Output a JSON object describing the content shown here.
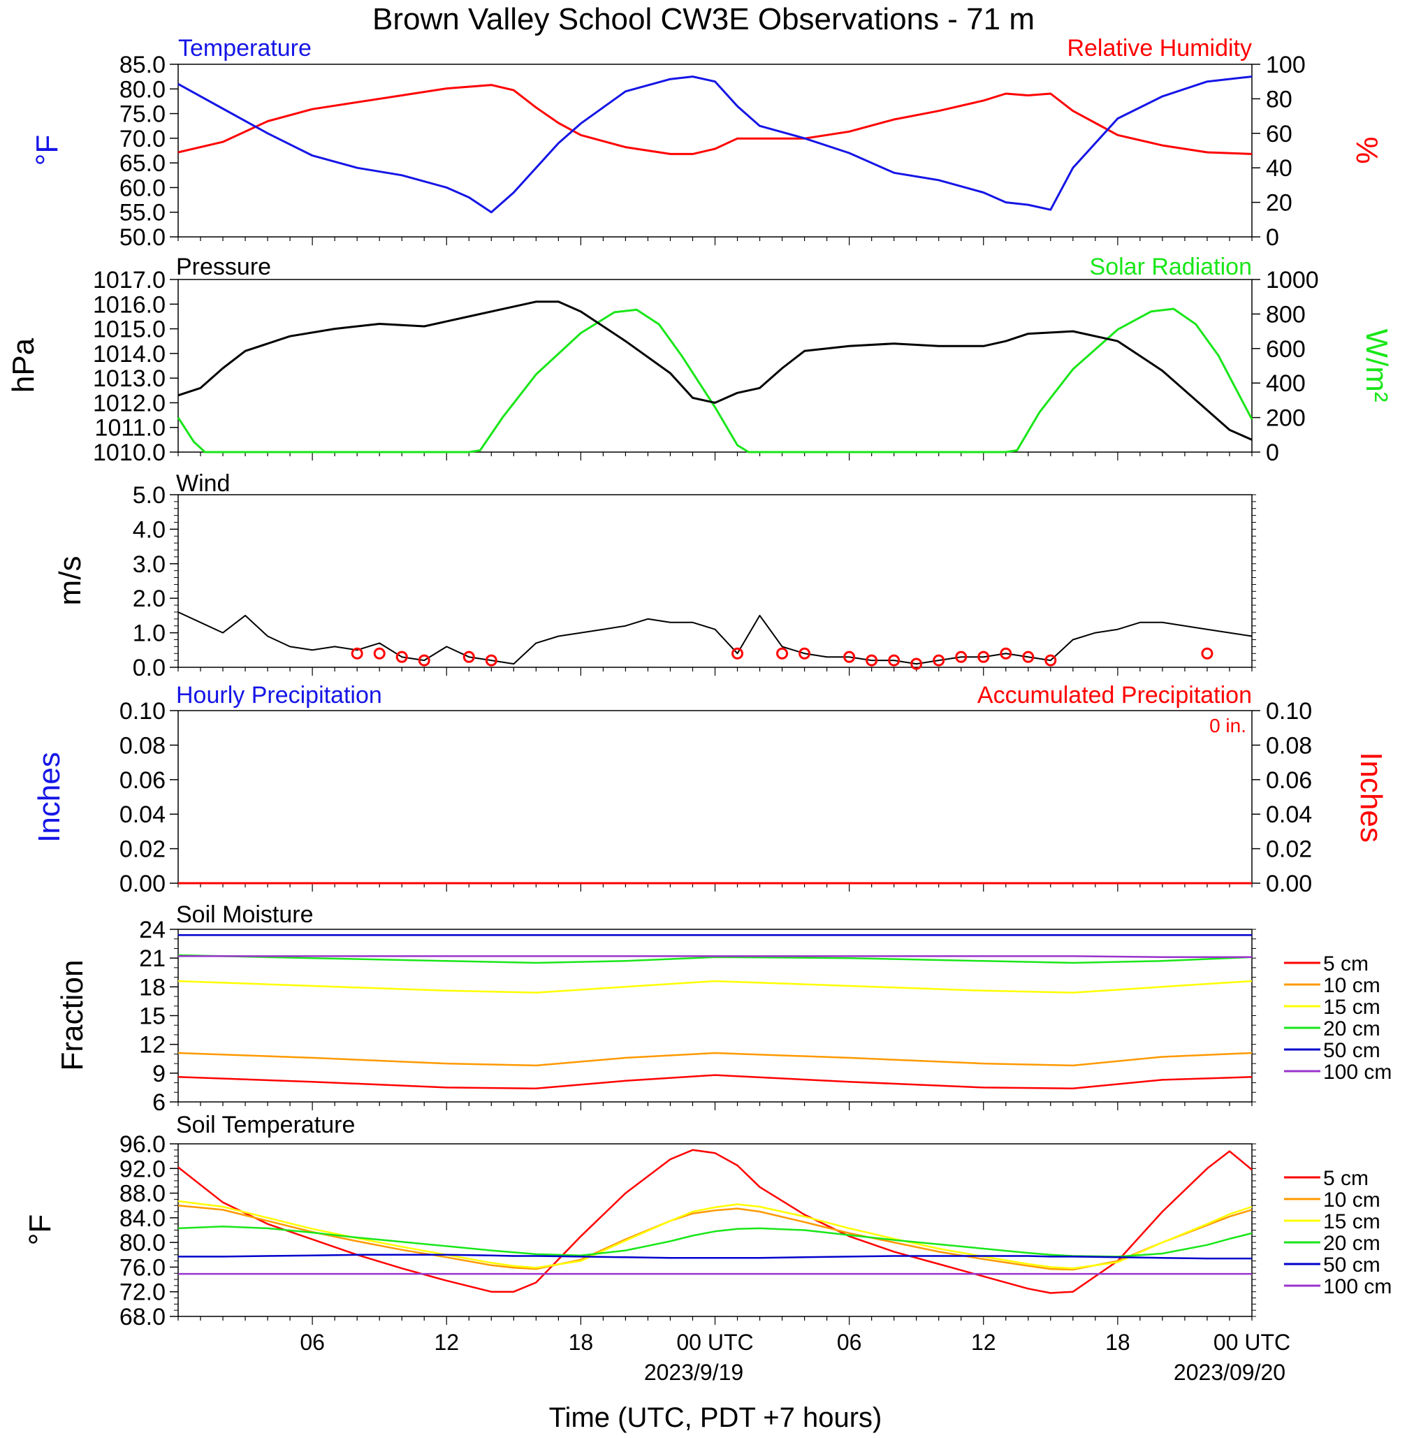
{
  "title": "Brown Valley School CW3E Observations - 71 m",
  "xlabel": "Time (UTC, PDT +7 hours)",
  "time_ticks": [
    "06",
    "12",
    "18",
    "00 UTC",
    "06",
    "12",
    "18",
    "00 UTC"
  ],
  "date_labels": [
    "2023/9/19",
    "2023/09/20"
  ],
  "colors": {
    "blue": "#1515e6",
    "red": "#ff0000",
    "green": "#19e619",
    "black": "#000000",
    "orange": "#ff9900",
    "yellow": "#ffff00",
    "navy": "#0000cc",
    "purple": "#9933cc"
  },
  "chart_data": [
    {
      "type": "line",
      "name_left": "Temperature",
      "name_right": "Relative Humidity",
      "ylabel_left": "°F",
      "ylabel_right": "%",
      "ylim_left": [
        50,
        85
      ],
      "ylim_right": [
        0,
        100
      ],
      "yticks_left": [
        "85.0",
        "80.0",
        "75.0",
        "70.0",
        "65.0",
        "60.0",
        "55.0",
        "50.0"
      ],
      "yticks_right": [
        "100",
        "80",
        "60",
        "40",
        "20",
        "0"
      ],
      "x_hours": [
        0,
        2,
        4,
        6,
        8,
        10,
        12,
        13,
        14,
        15,
        16,
        17,
        18,
        20,
        22,
        23,
        24,
        25,
        26,
        28,
        30,
        32,
        34,
        36,
        37,
        38,
        39,
        40,
        41,
        42,
        44,
        46,
        48
      ],
      "temperature_f": [
        81,
        76,
        71,
        66.5,
        64,
        62.5,
        60,
        58,
        55,
        59,
        64,
        69,
        73,
        79.5,
        82,
        82.5,
        81.5,
        76.5,
        72.5,
        70,
        67,
        63,
        61.5,
        59,
        57,
        56.5,
        55.5,
        64,
        69,
        74,
        78.5,
        81.5,
        82.5
      ],
      "rh_percent": [
        49,
        55,
        67,
        74,
        78,
        82,
        86,
        87,
        88,
        85,
        75,
        66,
        59,
        52,
        48,
        48,
        51,
        57,
        57,
        57,
        61,
        68,
        73,
        79,
        83,
        82,
        83,
        73,
        66,
        59,
        53,
        49,
        48
      ]
    },
    {
      "type": "line",
      "name_left": "Pressure",
      "name_right": "Solar Radiation",
      "ylabel_left": "hPa",
      "ylabel_right": "W/m²",
      "ylim_left": [
        1010,
        1017
      ],
      "ylim_right": [
        0,
        1000
      ],
      "yticks_left": [
        "1017.0",
        "1016.0",
        "1015.0",
        "1014.0",
        "1013.0",
        "1012.0",
        "1011.0",
        "1010.0"
      ],
      "yticks_right": [
        "1000",
        "800",
        "600",
        "400",
        "200",
        "0"
      ],
      "pressure_x_hours": [
        0,
        1,
        2,
        3,
        5,
        7,
        9,
        11,
        13,
        15,
        16,
        17,
        18,
        20,
        22,
        23,
        24,
        25,
        26,
        27,
        28,
        30,
        32,
        34,
        36,
        37,
        38,
        40,
        42,
        44,
        46,
        47,
        48
      ],
      "pressure_hpa": [
        1012.3,
        1012.6,
        1013.4,
        1014.1,
        1014.7,
        1015.0,
        1015.2,
        1015.1,
        1015.5,
        1015.9,
        1016.1,
        1016.1,
        1015.7,
        1014.5,
        1013.2,
        1012.2,
        1012.0,
        1012.4,
        1012.6,
        1013.4,
        1014.1,
        1014.3,
        1014.4,
        1014.3,
        1014.3,
        1014.5,
        1014.8,
        1014.9,
        1014.5,
        1013.3,
        1011.7,
        1010.9,
        1010.5
      ],
      "solar_x_hours": [
        0,
        0.7,
        1.2,
        13,
        13.5,
        14.5,
        16,
        18,
        19.5,
        20.5,
        21.5,
        22.5,
        24,
        25,
        25.5,
        37,
        37.5,
        38.5,
        40,
        42,
        43.5,
        44.5,
        45.5,
        46.5,
        48
      ],
      "solar_wm2": [
        200,
        60,
        0,
        0,
        10,
        200,
        450,
        690,
        810,
        825,
        740,
        560,
        260,
        40,
        0,
        0,
        10,
        230,
        480,
        710,
        815,
        830,
        740,
        560,
        190
      ]
    },
    {
      "type": "line",
      "name": "Wind",
      "ylabel": "m/s",
      "ylim": [
        0,
        5
      ],
      "yticks": [
        "5.0",
        "4.0",
        "3.0",
        "2.0",
        "1.0",
        "0.0"
      ],
      "x_hours": [
        0,
        1,
        2,
        3,
        4,
        5,
        6,
        7,
        8,
        9,
        10,
        11,
        12,
        13,
        14,
        15,
        16,
        17,
        18,
        19,
        20,
        21,
        22,
        23,
        24,
        25,
        26,
        27,
        28,
        29,
        30,
        31,
        32,
        33,
        34,
        35,
        36,
        37,
        38,
        39,
        40,
        41,
        42,
        43,
        44,
        45,
        46,
        47,
        48
      ],
      "speed_ms": [
        1.6,
        1.3,
        1.0,
        1.5,
        0.9,
        0.6,
        0.5,
        0.6,
        0.5,
        0.7,
        0.3,
        0.2,
        0.6,
        0.3,
        0.2,
        0.1,
        0.7,
        0.9,
        1.0,
        1.1,
        1.2,
        1.4,
        1.3,
        1.3,
        1.1,
        0.4,
        1.5,
        0.6,
        0.4,
        0.3,
        0.3,
        0.2,
        0.2,
        0.1,
        0.2,
        0.3,
        0.3,
        0.4,
        0.3,
        0.2,
        0.8,
        1.0,
        1.1,
        1.3,
        1.3,
        1.2,
        1.1,
        1.0,
        0.9
      ],
      "calm_marker_hours": [
        8,
        9,
        10,
        11,
        13,
        14,
        25,
        27,
        28,
        30,
        31,
        32,
        33,
        34,
        35,
        36,
        37,
        38,
        39,
        46
      ]
    },
    {
      "type": "line",
      "name_left": "Hourly Precipitation",
      "name_right": "Accumulated Precipitation",
      "annotation": "0 in.",
      "ylabel_left": "Inches",
      "ylabel_right": "Inches",
      "ylim": [
        0,
        0.1
      ],
      "yticks": [
        "0.10",
        "0.08",
        "0.06",
        "0.04",
        "0.02",
        "0.00"
      ],
      "x_hours": [
        0,
        48
      ],
      "hourly_in": [
        0,
        0
      ],
      "accum_in": [
        0,
        0
      ]
    },
    {
      "type": "line",
      "name": "Soil Moisture",
      "ylabel": "Fraction",
      "ylim": [
        6,
        24
      ],
      "yticks": [
        "24",
        "21",
        "18",
        "15",
        "12",
        "9",
        "6"
      ],
      "legend": [
        "5 cm",
        "10 cm",
        "15 cm",
        "20 cm",
        "50 cm",
        "100 cm"
      ],
      "x_hours": [
        0,
        6,
        12,
        16,
        20,
        24,
        30,
        36,
        40,
        44,
        48
      ],
      "series": [
        {
          "name": "5 cm",
          "values": [
            8.6,
            8.1,
            7.5,
            7.4,
            8.2,
            8.8,
            8.1,
            7.5,
            7.4,
            8.3,
            8.6
          ]
        },
        {
          "name": "10 cm",
          "values": [
            11.1,
            10.6,
            10.0,
            9.8,
            10.6,
            11.1,
            10.6,
            10.0,
            9.8,
            10.7,
            11.1
          ]
        },
        {
          "name": "15 cm",
          "values": [
            18.6,
            18.1,
            17.6,
            17.4,
            18.0,
            18.6,
            18.1,
            17.6,
            17.4,
            18.0,
            18.6
          ]
        },
        {
          "name": "20 cm",
          "values": [
            21.3,
            21.0,
            20.7,
            20.5,
            20.7,
            21.1,
            21.0,
            20.7,
            20.5,
            20.7,
            21.1
          ]
        },
        {
          "name": "50 cm",
          "values": [
            23.4,
            23.4,
            23.4,
            23.4,
            23.4,
            23.4,
            23.4,
            23.4,
            23.4,
            23.4,
            23.4
          ]
        },
        {
          "name": "100 cm",
          "values": [
            21.2,
            21.2,
            21.2,
            21.2,
            21.2,
            21.2,
            21.2,
            21.2,
            21.2,
            21.1,
            21.1
          ]
        }
      ]
    },
    {
      "type": "line",
      "name": "Soil Temperature",
      "ylabel": "°F",
      "ylim": [
        68,
        96
      ],
      "yticks": [
        "96.0",
        "92.0",
        "88.0",
        "84.0",
        "80.0",
        "76.0",
        "72.0",
        "68.0"
      ],
      "legend": [
        "5 cm",
        "10 cm",
        "15 cm",
        "20 cm",
        "50 cm",
        "100 cm"
      ],
      "x_hours": [
        0,
        2,
        4,
        6,
        8,
        10,
        12,
        14,
        15,
        16,
        18,
        20,
        22,
        23,
        24,
        25,
        26,
        28,
        30,
        32,
        34,
        36,
        38,
        39,
        40,
        42,
        44,
        46,
        47,
        48
      ],
      "series": [
        {
          "name": "5 cm",
          "values": [
            92.2,
            86.5,
            83,
            80.5,
            78,
            75.8,
            73.8,
            72,
            72,
            73.5,
            81,
            88,
            93.5,
            95,
            94.5,
            92.5,
            89,
            84.5,
            81,
            78.5,
            76.5,
            74.5,
            72.5,
            71.8,
            72,
            77,
            85,
            92,
            94.8,
            91.8
          ]
        },
        {
          "name": "10 cm",
          "values": [
            86,
            85.3,
            83.5,
            81.7,
            80.2,
            78.8,
            77.6,
            76.3,
            75.9,
            75.7,
            77.2,
            80.5,
            83.5,
            84.7,
            85.2,
            85.5,
            85,
            83.3,
            81.5,
            80,
            78.5,
            77.3,
            76.2,
            75.7,
            75.6,
            77,
            80,
            82.8,
            84.2,
            85.3
          ]
        },
        {
          "name": "15 cm",
          "values": [
            86.7,
            85.8,
            84,
            82.2,
            80.7,
            79.3,
            78,
            76.7,
            76.2,
            75.9,
            77,
            80.3,
            83.5,
            85,
            85.7,
            86.2,
            85.8,
            84.2,
            82.3,
            80.6,
            79,
            77.7,
            76.5,
            76,
            75.8,
            76.8,
            80,
            83,
            84.6,
            85.8
          ]
        },
        {
          "name": "20 cm",
          "values": [
            82.3,
            82.6,
            82.3,
            81.6,
            80.8,
            80.1,
            79.4,
            78.7,
            78.4,
            78.1,
            77.9,
            78.7,
            80.2,
            81.1,
            81.8,
            82.2,
            82.3,
            82,
            81.2,
            80.4,
            79.7,
            79,
            78.3,
            78,
            77.8,
            77.7,
            78.2,
            79.6,
            80.6,
            81.5
          ]
        },
        {
          "name": "50 cm",
          "values": [
            77.7,
            77.7,
            77.8,
            77.9,
            78,
            78,
            78,
            77.9,
            77.8,
            77.8,
            77.7,
            77.6,
            77.5,
            77.5,
            77.5,
            77.5,
            77.5,
            77.6,
            77.7,
            77.8,
            77.8,
            77.8,
            77.8,
            77.7,
            77.7,
            77.6,
            77.5,
            77.4,
            77.4,
            77.4
          ]
        },
        {
          "name": "100 cm",
          "values": [
            74.9,
            74.9,
            74.9,
            74.9,
            74.9,
            74.9,
            74.9,
            74.9,
            74.9,
            74.9,
            74.9,
            74.9,
            74.9,
            74.9,
            74.9,
            74.9,
            74.9,
            74.9,
            74.9,
            74.9,
            74.9,
            74.9,
            74.9,
            74.9,
            74.9,
            74.9,
            74.9,
            74.9,
            74.9,
            74.9
          ]
        }
      ]
    }
  ]
}
